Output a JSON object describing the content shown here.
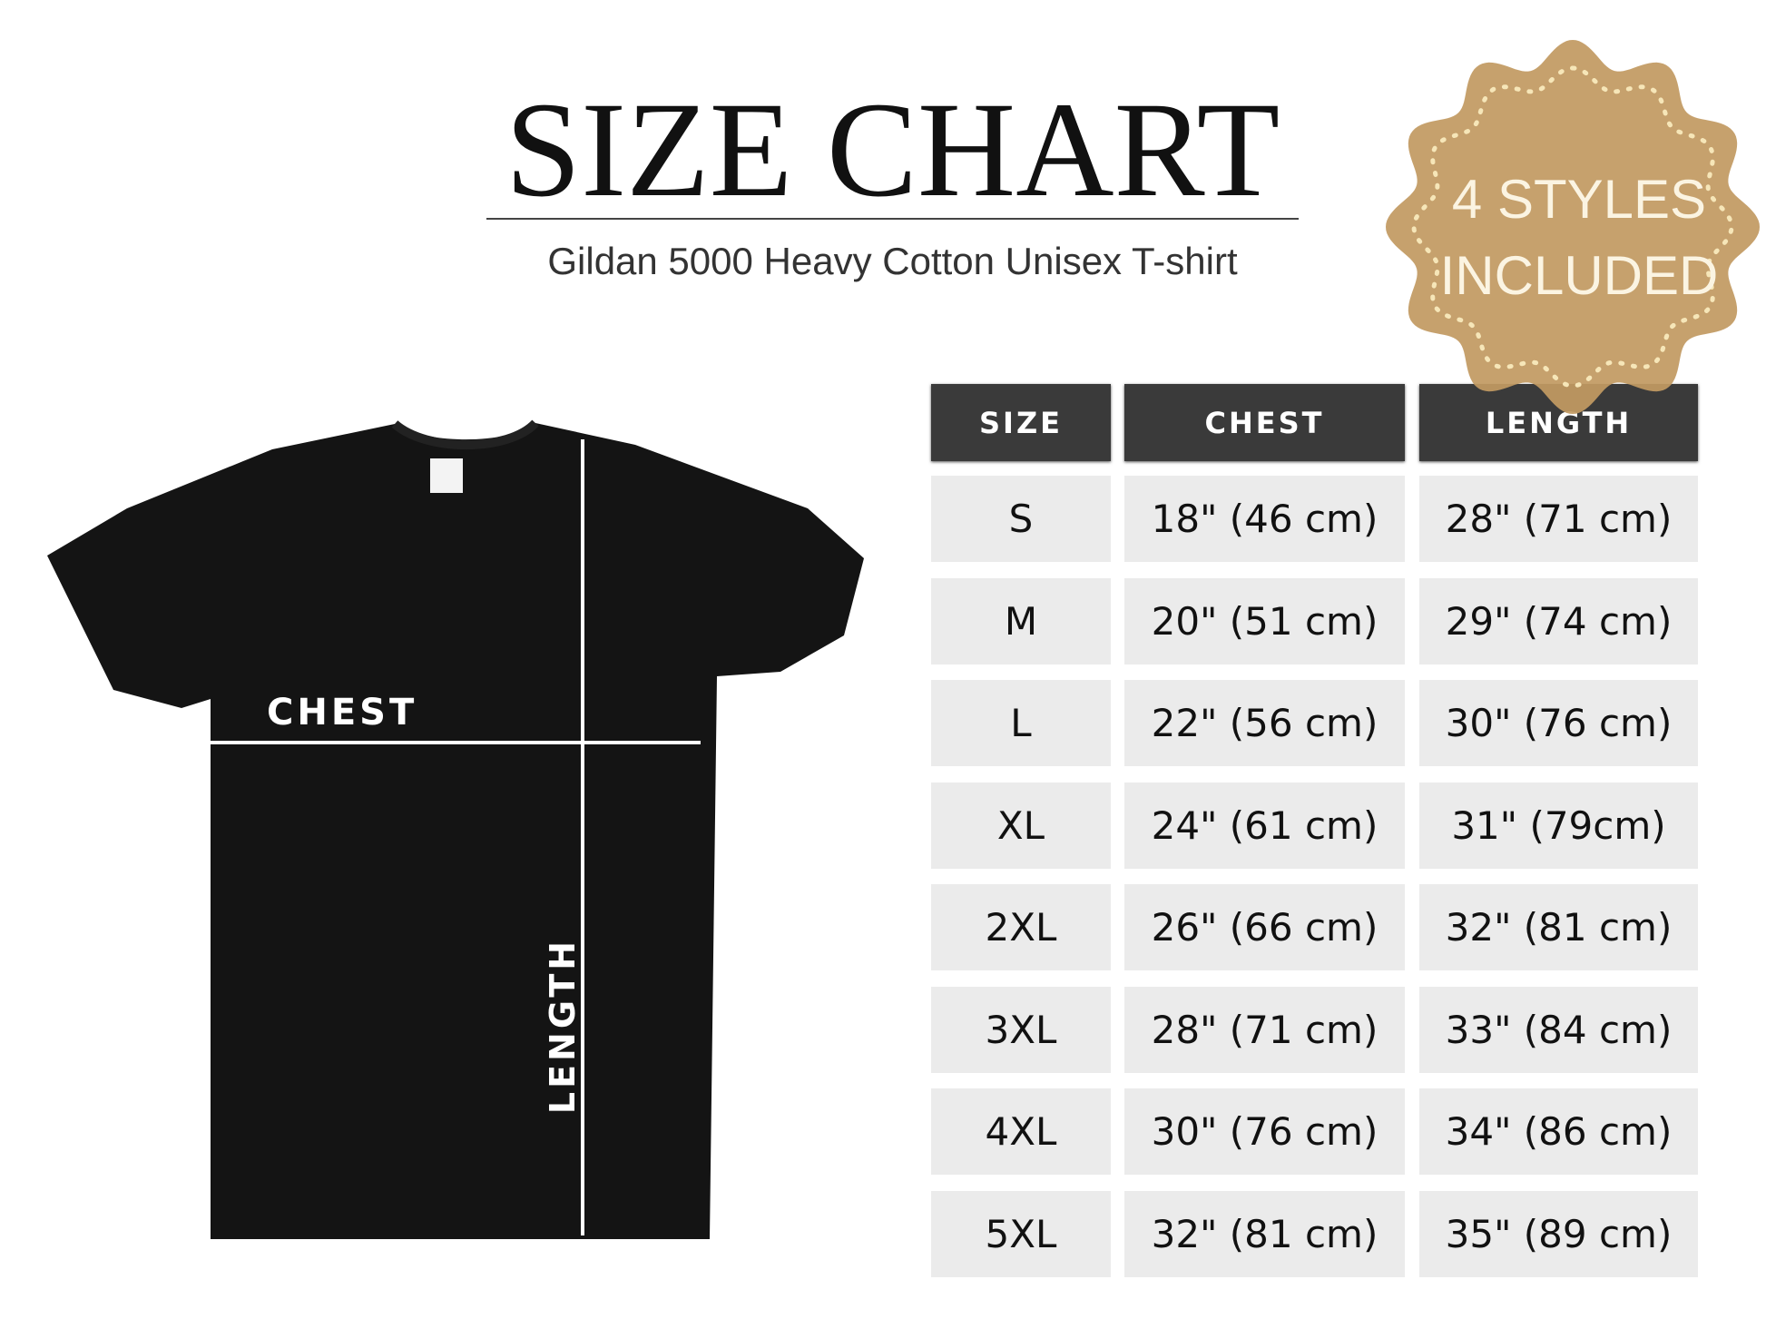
{
  "title": "SIZE CHART",
  "subtitle": "Gildan 5000 Heavy Cotton Unisex T-shirt",
  "badge": {
    "line1": "4 STYLES",
    "line2": "INCLUDED",
    "color": "#c29a62"
  },
  "diagram": {
    "chest_label": "CHEST",
    "length_label": "LENGTH",
    "shirt_color": "#141414"
  },
  "table": {
    "headers": [
      "SIZE",
      "CHEST",
      "LENGTH"
    ],
    "rows": [
      [
        "S",
        "18\" (46 cm)",
        "28\" (71 cm)"
      ],
      [
        "M",
        "20\" (51 cm)",
        "29\" (74 cm)"
      ],
      [
        "L",
        "22\" (56 cm)",
        "30\" (76 cm)"
      ],
      [
        "XL",
        "24\" (61 cm)",
        "31\" (79cm)"
      ],
      [
        "2XL",
        "26\" (66 cm)",
        "32\" (81 cm)"
      ],
      [
        "3XL",
        "28\" (71 cm)",
        "33\" (84 cm)"
      ],
      [
        "4XL",
        "30\" (76 cm)",
        "34\" (86 cm)"
      ],
      [
        "5XL",
        "32\" (81 cm)",
        "35\" (89 cm)"
      ]
    ]
  }
}
